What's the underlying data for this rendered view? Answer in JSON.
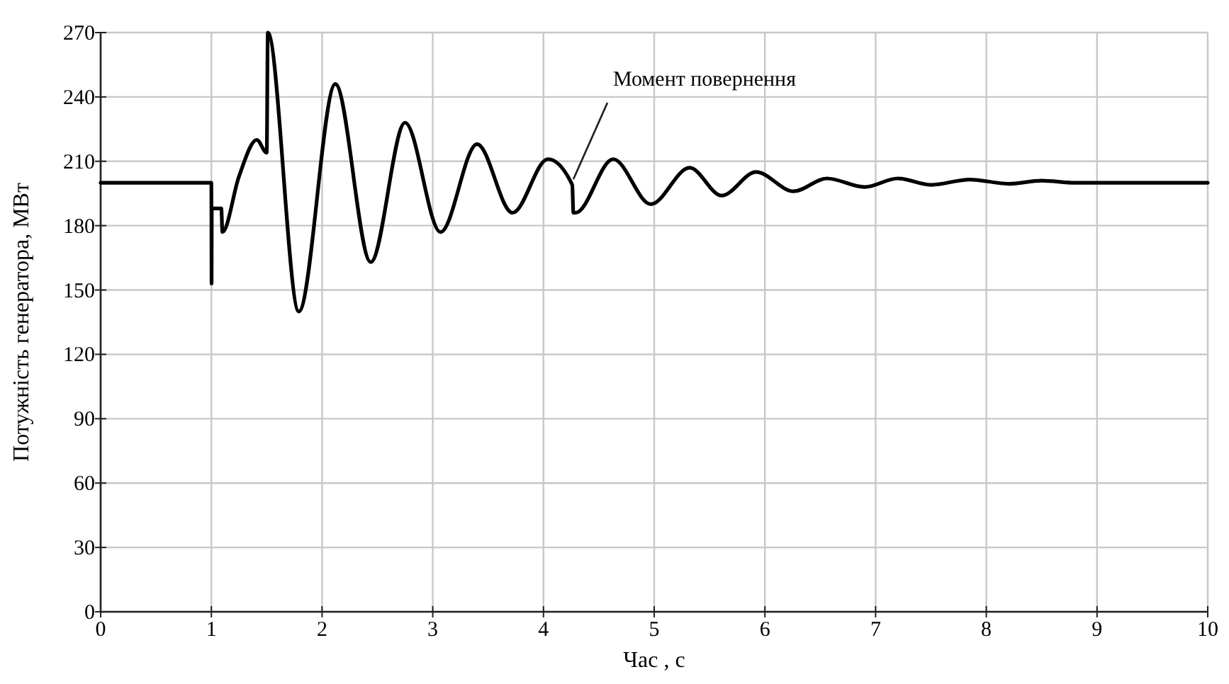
{
  "chart_data": {
    "type": "line",
    "xlabel": "Час , с",
    "ylabel": "Потужність генератора, МВт",
    "xlim": [
      0,
      10
    ],
    "ylim": [
      0,
      270
    ],
    "xticks": [
      0,
      1,
      2,
      3,
      4,
      5,
      6,
      7,
      8,
      9,
      10
    ],
    "yticks": [
      0,
      30,
      60,
      90,
      120,
      150,
      180,
      210,
      240,
      270
    ],
    "grid": true,
    "annotations": [
      {
        "text": "Момент повернення",
        "x": 4.27,
        "y": 199
      }
    ],
    "series": [
      {
        "color": "#000000",
        "x": [
          0,
          1,
          1.002,
          1.004,
          1.09,
          1.1,
          1.25,
          1.41,
          1.5,
          1.51,
          1.79,
          2.12,
          2.44,
          2.75,
          3.07,
          3.4,
          3.72,
          4.04,
          4.26,
          4.27,
          4.29,
          4.63,
          4.97,
          5.32,
          5.61,
          5.92,
          6.26,
          6.56,
          6.9,
          7.2,
          7.5,
          7.85,
          8.2,
          8.5,
          8.8,
          10
        ],
        "values": [
          200,
          200,
          153,
          188,
          188,
          177,
          203,
          220,
          214,
          270,
          140,
          246,
          163,
          228,
          177,
          218,
          186,
          211,
          199,
          186,
          186,
          211,
          190,
          207,
          194,
          205,
          196,
          202,
          198,
          202,
          199,
          201.5,
          199.5,
          201,
          200,
          200
        ]
      }
    ]
  }
}
